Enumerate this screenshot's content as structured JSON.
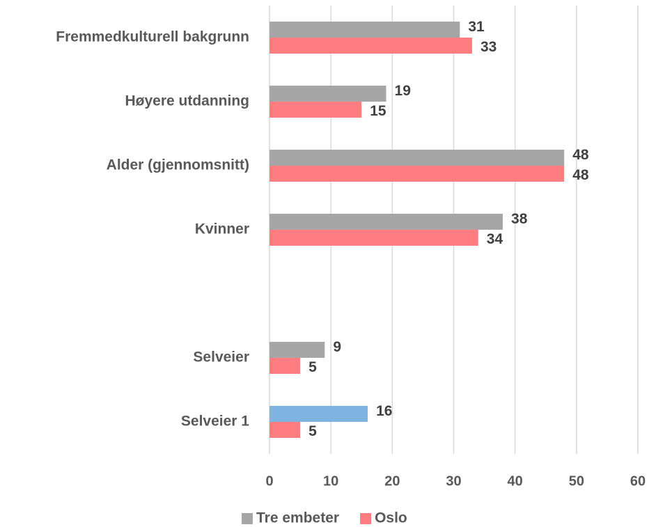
{
  "chart_data": {
    "type": "hbar",
    "categories": [
      "Fremmedkulturell bakgrunn",
      "Høyere utdanning",
      "Alder (gjennomsnitt)",
      "Kvinner",
      null,
      "Selveier",
      "Selveier 1"
    ],
    "series": [
      {
        "name": "Tre embeter",
        "color": "#a6a6a6",
        "colors": [
          "#a6a6a6",
          "#a6a6a6",
          "#a6a6a6",
          "#a6a6a6",
          "#a6a6a6",
          "#a6a6a6",
          "#7eb4df"
        ],
        "values": [
          31,
          19,
          48,
          38,
          null,
          9,
          16
        ]
      },
      {
        "name": "Oslo",
        "color": "#ff7c80",
        "values": [
          33,
          15,
          48,
          34,
          null,
          5,
          5
        ]
      }
    ],
    "xlim": [
      0,
      60
    ],
    "xticks": [
      0,
      10,
      20,
      30,
      40,
      50,
      60
    ],
    "grid": true,
    "legend": "bottom",
    "data_labels": true
  }
}
